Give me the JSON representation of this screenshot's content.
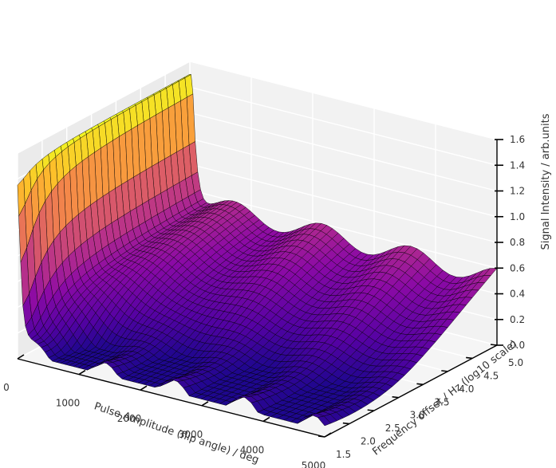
{
  "chart_data": {
    "type": "surface3d",
    "title": "",
    "xlabel": "Pulse Amplitude (flip angle) / deg",
    "ylabel": "Frequency offset / Hz (log10 scale)",
    "zlabel": "Signal Intensity / arb.units",
    "xlim": [
      0,
      5000
    ],
    "ylim": [
      1.5,
      5.0
    ],
    "zlim": [
      0.0,
      1.6
    ],
    "x_ticks": [
      0,
      1000,
      2000,
      3000,
      4000,
      5000
    ],
    "y_ticks": [
      1.5,
      2.0,
      2.5,
      3.0,
      3.5,
      4.0,
      4.5,
      5.0
    ],
    "z_ticks": [
      0.0,
      0.2,
      0.4,
      0.6,
      0.8,
      1.0,
      1.2,
      1.4,
      1.6
    ],
    "x_tick_labels": [
      "0",
      "1000",
      "2000",
      "3000",
      "4000",
      "5000"
    ],
    "y_tick_labels": [
      "1.5",
      "2.0",
      "2.5",
      "3.0",
      "3.5",
      "4.0",
      "4.5",
      "5.0"
    ],
    "z_tick_labels": [
      "0.0",
      "0.2",
      "0.4",
      "0.6",
      "0.8",
      "1.0",
      "1.2",
      "1.4",
      "1.6"
    ],
    "colormap": "plasma",
    "pane_color": "#ebebeb",
    "edge_color": "#000000",
    "plateau_level": 1.5,
    "minimum_level": 0.05,
    "dip_positions_deg": [
      360,
      1800,
      2880,
      4320
    ],
    "grid": true,
    "legend": "none"
  }
}
